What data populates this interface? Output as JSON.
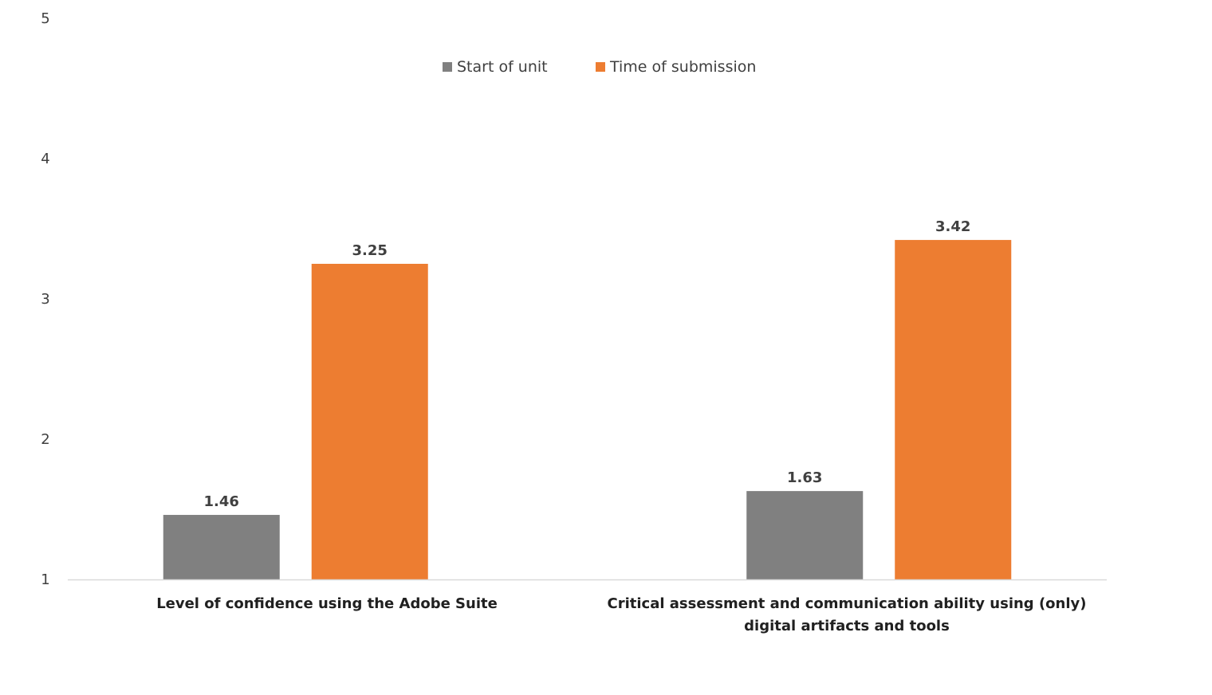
{
  "chart_data": {
    "type": "bar",
    "categories": [
      [
        "Level of confidence using the Adobe Suite"
      ],
      [
        "Critical assessment and communication ability using (only)",
        "digital artifacts and tools"
      ]
    ],
    "series": [
      {
        "name": "Start of unit",
        "color": "#808080",
        "values": [
          1.46,
          1.63
        ]
      },
      {
        "name": "Time of submission",
        "color": "#ED7D31",
        "values": [
          3.25,
          3.42
        ]
      }
    ],
    "ylim": [
      1,
      5
    ],
    "yticks": [
      "1",
      "2",
      "3",
      "4",
      "5"
    ],
    "value_labels": [
      [
        "1.46",
        "1.63"
      ],
      [
        "3.25",
        "3.42"
      ]
    ],
    "legend_position": "top",
    "grid": false,
    "axis_color": "#d9d9d9"
  }
}
